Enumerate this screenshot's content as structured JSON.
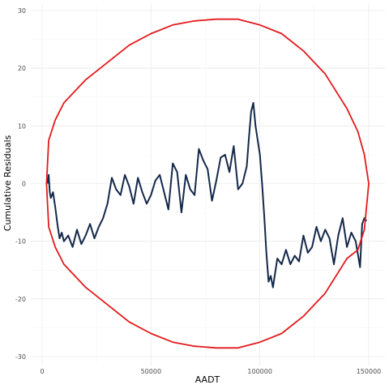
{
  "chart_data": {
    "type": "line",
    "title": "",
    "xlabel": "AADT",
    "ylabel": "Cumulative Residuals",
    "xlim": [
      0,
      152000
    ],
    "ylim": [
      -30,
      30
    ],
    "x_ticks": [
      0,
      50000,
      100000,
      150000
    ],
    "x_tick_labels": [
      "0",
      "50000",
      "100000",
      "150000"
    ],
    "y_ticks": [
      -30,
      -20,
      -10,
      0,
      10,
      20,
      30
    ],
    "y_tick_labels": [
      "-30",
      "-20",
      "-10",
      "0",
      "10",
      "20",
      "30"
    ],
    "grid": true,
    "legend": "none",
    "colors": {
      "residuals": "#14284a",
      "bounds": "#e31a1c"
    },
    "series": [
      {
        "key": "residuals",
        "x": [
          2500,
          3000,
          3500,
          4000,
          5000,
          6000,
          7000,
          8000,
          9000,
          10000,
          12000,
          14000,
          16000,
          18000,
          20000,
          22000,
          24000,
          26000,
          28000,
          30000,
          32000,
          34000,
          36000,
          38000,
          40000,
          42000,
          44000,
          46000,
          48000,
          50000,
          52000,
          54000,
          56000,
          58000,
          60000,
          62000,
          64000,
          66000,
          68000,
          70000,
          72000,
          74000,
          76000,
          78000,
          80000,
          82000,
          84000,
          86000,
          88000,
          90000,
          92000,
          94000,
          95000,
          96000,
          97000,
          98000,
          99000,
          100000,
          101000,
          102000,
          103000,
          104000,
          105000,
          106000,
          108000,
          110000,
          112000,
          114000,
          116000,
          118000,
          120000,
          122000,
          124000,
          126000,
          128000,
          130000,
          132000,
          134000,
          136000,
          138000,
          140000,
          142000,
          144000,
          146000,
          147000,
          148000,
          149000
        ],
        "y": [
          0.0,
          1.5,
          -1.5,
          -2.5,
          -1.5,
          -4.0,
          -7.0,
          -9.5,
          -8.5,
          -10.0,
          -9.0,
          -11.0,
          -8.0,
          -10.5,
          -9.0,
          -7.0,
          -9.5,
          -7.5,
          -6.0,
          -3.5,
          1.0,
          -1.0,
          -2.0,
          1.5,
          -0.5,
          -3.5,
          1.0,
          -1.5,
          -3.5,
          -2.0,
          0.5,
          1.5,
          -1.5,
          -4.5,
          3.5,
          2.0,
          -5.0,
          1.5,
          -1.0,
          -2.0,
          6.0,
          4.0,
          2.5,
          -3.0,
          0.5,
          4.5,
          5.0,
          2.0,
          6.5,
          -1.0,
          0.0,
          3.0,
          8.0,
          12.5,
          14.0,
          10.0,
          7.5,
          5.0,
          0.0,
          -5.5,
          -12.0,
          -17.0,
          -16.0,
          -18.0,
          -13.0,
          -14.0,
          -11.5,
          -14.0,
          -12.5,
          -13.5,
          -9.0,
          -12.0,
          -11.0,
          -7.5,
          -10.0,
          -8.0,
          -9.5,
          -14.0,
          -9.0,
          -6.0,
          -11.0,
          -8.5,
          -10.0,
          -14.5,
          -7.0,
          -6.0,
          -6.5
        ]
      },
      {
        "key": "upper_bound",
        "x": [
          2000,
          3000,
          6000,
          10000,
          20000,
          30000,
          40000,
          50000,
          60000,
          70000,
          80000,
          90000,
          100000,
          110000,
          120000,
          130000,
          140000,
          145000,
          148000,
          150000
        ],
        "y": [
          0,
          7.5,
          11.0,
          14.0,
          18.0,
          21.0,
          24.0,
          26.0,
          27.5,
          28.2,
          28.5,
          28.5,
          27.5,
          26.0,
          23.0,
          19.0,
          13.0,
          9.0,
          5.0,
          0
        ]
      },
      {
        "key": "lower_bound",
        "x": [
          2000,
          3000,
          6000,
          10000,
          20000,
          30000,
          40000,
          50000,
          60000,
          70000,
          80000,
          90000,
          100000,
          110000,
          120000,
          130000,
          140000,
          145000,
          148000,
          150000
        ],
        "y": [
          0,
          -7.5,
          -11.0,
          -14.0,
          -18.0,
          -21.0,
          -24.0,
          -26.0,
          -27.5,
          -28.2,
          -28.5,
          -28.5,
          -27.5,
          -26.0,
          -23.0,
          -19.0,
          -13.0,
          -11.5,
          -8.0,
          0
        ]
      }
    ]
  }
}
